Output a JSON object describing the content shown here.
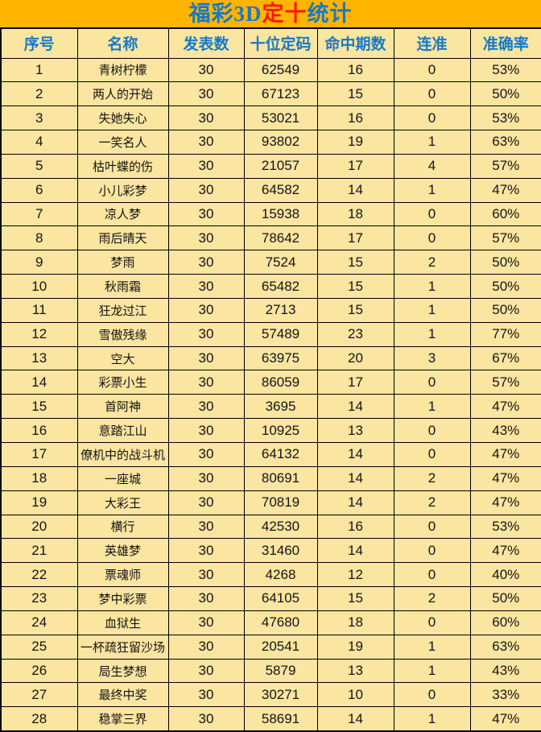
{
  "title": {
    "part1": "福彩3D",
    "part2": "定十",
    "part3": "统计",
    "full": "福彩3D定十统计"
  },
  "colors": {
    "page_bg": "#FFB400",
    "cell_bg": "#FAE5A1",
    "accent_blue": "#1879C6",
    "accent_red": "#FB1A06",
    "body_text": "#141414",
    "border": "#000000"
  },
  "chart_data": {
    "type": "table",
    "title": "福彩3D定十统计",
    "columns": [
      "序号",
      "名称",
      "发表数",
      "十位定码",
      "命中期数",
      "连准",
      "准确率"
    ],
    "rows": [
      [
        "1",
        "青树柠檬",
        "30",
        "62549",
        "16",
        "0",
        "53%"
      ],
      [
        "2",
        "两人的开始",
        "30",
        "67123",
        "15",
        "0",
        "50%"
      ],
      [
        "3",
        "失她失心",
        "30",
        "53021",
        "16",
        "0",
        "53%"
      ],
      [
        "4",
        "一笑名人",
        "30",
        "93802",
        "19",
        "1",
        "63%"
      ],
      [
        "5",
        "枯叶蝶的伤",
        "30",
        "21057",
        "17",
        "4",
        "57%"
      ],
      [
        "6",
        "小儿彩梦",
        "30",
        "64582",
        "14",
        "1",
        "47%"
      ],
      [
        "7",
        "凉人梦",
        "30",
        "15938",
        "18",
        "0",
        "60%"
      ],
      [
        "8",
        "雨后晴天",
        "30",
        "78642",
        "17",
        "0",
        "57%"
      ],
      [
        "9",
        "梦雨",
        "30",
        "7524",
        "15",
        "2",
        "50%"
      ],
      [
        "10",
        "秋雨霜",
        "30",
        "65482",
        "15",
        "1",
        "50%"
      ],
      [
        "11",
        "狂龙过江",
        "30",
        "2713",
        "15",
        "1",
        "50%"
      ],
      [
        "12",
        "雪傲残缘",
        "30",
        "57489",
        "23",
        "1",
        "77%"
      ],
      [
        "13",
        "空大",
        "30",
        "63975",
        "20",
        "3",
        "67%"
      ],
      [
        "14",
        "彩票小生",
        "30",
        "86059",
        "17",
        "0",
        "57%"
      ],
      [
        "15",
        "首阿神",
        "30",
        "3695",
        "14",
        "1",
        "47%"
      ],
      [
        "16",
        "意踏江山",
        "30",
        "10925",
        "13",
        "0",
        "43%"
      ],
      [
        "17",
        "僚机中的战斗机",
        "30",
        "64132",
        "14",
        "0",
        "47%"
      ],
      [
        "18",
        "一座城",
        "30",
        "80691",
        "14",
        "2",
        "47%"
      ],
      [
        "19",
        "大彩王",
        "30",
        "70819",
        "14",
        "2",
        "47%"
      ],
      [
        "20",
        "横行",
        "30",
        "42530",
        "16",
        "0",
        "53%"
      ],
      [
        "21",
        "英雄梦",
        "30",
        "31460",
        "14",
        "0",
        "47%"
      ],
      [
        "22",
        "票魂师",
        "30",
        "4268",
        "12",
        "0",
        "40%"
      ],
      [
        "23",
        "梦中彩票",
        "30",
        "64105",
        "15",
        "2",
        "50%"
      ],
      [
        "24",
        "血狱生",
        "30",
        "47680",
        "18",
        "0",
        "60%"
      ],
      [
        "25",
        "一杯疏狂留沙场",
        "30",
        "20541",
        "19",
        "1",
        "63%"
      ],
      [
        "26",
        "局生梦想",
        "30",
        "5879",
        "13",
        "1",
        "43%"
      ],
      [
        "27",
        "最终中奖",
        "30",
        "30271",
        "10",
        "0",
        "33%"
      ],
      [
        "28",
        "稳掌三界",
        "30",
        "58691",
        "14",
        "1",
        "47%"
      ]
    ]
  }
}
